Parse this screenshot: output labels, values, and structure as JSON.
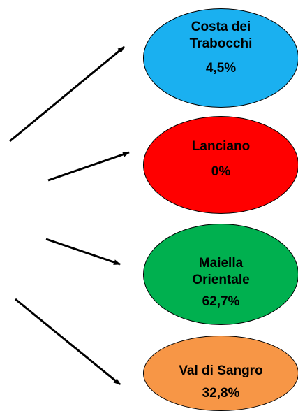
{
  "diagram": {
    "nodes": [
      {
        "id": "costa-dei-trabocchi",
        "name": "Costa dei\nTrabocchi",
        "value": "4,5%",
        "color": "#1ab0f0"
      },
      {
        "id": "lanciano",
        "name": "Lanciano",
        "value": "0%",
        "color": "#ff0000"
      },
      {
        "id": "maiella-orientale",
        "name": "Maiella\nOrientale",
        "value": "62,7%",
        "color": "#00b04f"
      },
      {
        "id": "val-di-sangro",
        "name": "Val di Sangro",
        "value": "32,8%",
        "color": "#f79646"
      }
    ]
  }
}
